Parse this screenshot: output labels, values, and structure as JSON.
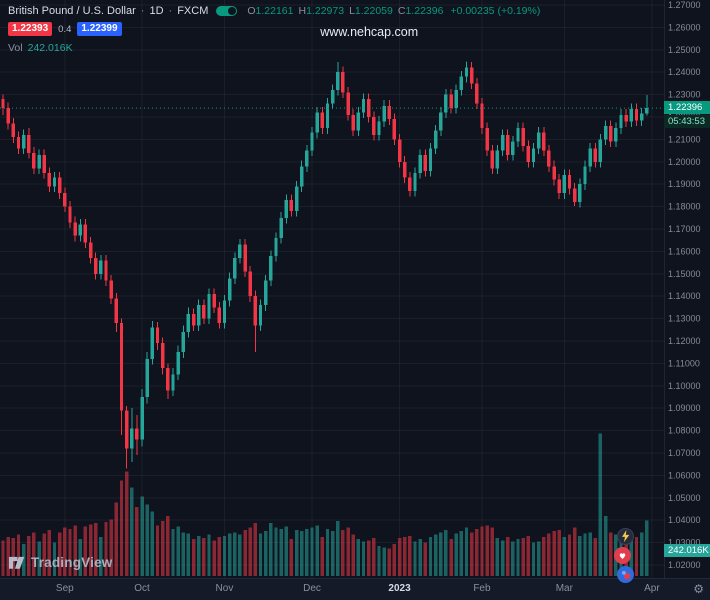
{
  "header": {
    "symbol_title": "British Pound / U.S. Dollar",
    "separator": "·",
    "interval": "1D",
    "exchange": "FXCM",
    "ohlc": {
      "o_label": "O",
      "o_value": "1.22161",
      "h_label": "H",
      "h_value": "1.22973",
      "l_label": "L",
      "l_value": "1.22059",
      "c_label": "C",
      "c_value": "1.22396",
      "change": "+0.00235 (+0.19%)"
    },
    "bid": "1.22393",
    "spread": "0.4",
    "ask": "1.22399",
    "vol_label": "Vol",
    "vol_value": "242.016K"
  },
  "watermark": "www.nehcap.com",
  "price_axis": {
    "last_price": "1.22396",
    "countdown": "05:43:53",
    "volume_badge": "242.016K"
  },
  "footer": {
    "logo_text": "TradingView"
  },
  "icons": {
    "gear": "⚙"
  },
  "colors": {
    "up": "#26a69a",
    "down": "#f23645",
    "up_text": "#089981",
    "grid": "rgba(255,255,255,0.05)",
    "axis_text": "#868b98",
    "accent_blue": "#2962ff",
    "accent_red": "#f23645"
  },
  "chart_data": {
    "type": "candlestick",
    "symbol": "GBP/USD",
    "timeframe": "1D",
    "exchange": "FXCM",
    "volume_unit": "K",
    "y_axis": {
      "min": 1.02,
      "max": 1.27,
      "tick_step": 0.01,
      "labels": [
        "1.27000",
        "1.26000",
        "1.25000",
        "1.24000",
        "1.23000",
        "1.22000",
        "1.21000",
        "1.20000",
        "1.19000",
        "1.18000",
        "1.17000",
        "1.16000",
        "1.15000",
        "1.14000",
        "1.13000",
        "1.12000",
        "1.11000",
        "1.10000",
        "1.09000",
        "1.08000",
        "1.07000",
        "1.06000",
        "1.05000",
        "1.04000",
        "1.03000",
        "1.02000"
      ]
    },
    "x_axis": {
      "labels": [
        {
          "text": "Sep",
          "index": 12
        },
        {
          "text": "Oct",
          "index": 27
        },
        {
          "text": "Nov",
          "index": 43
        },
        {
          "text": "Dec",
          "index": 60
        },
        {
          "text": "2023",
          "index": 77,
          "highlight": true
        },
        {
          "text": "Feb",
          "index": 93
        },
        {
          "text": "Mar",
          "index": 109
        },
        {
          "text": "Apr",
          "index": 126
        }
      ]
    },
    "last": {
      "open": 1.22161,
      "high": 1.22973,
      "low": 1.22059,
      "close": 1.22396,
      "change": "+0.00235 (+0.19%)",
      "volume": "242.016K",
      "countdown": "05:43:53"
    },
    "candles": [
      [
        1.228,
        1.23,
        1.221,
        1.224,
        155
      ],
      [
        1.224,
        1.2265,
        1.2145,
        1.217,
        170
      ],
      [
        1.217,
        1.2195,
        1.2085,
        1.211,
        165
      ],
      [
        1.211,
        1.2135,
        1.2035,
        1.206,
        180
      ],
      [
        1.206,
        1.2145,
        1.2035,
        1.212,
        140
      ],
      [
        1.212,
        1.215,
        1.2015,
        1.204,
        175
      ],
      [
        1.204,
        1.2065,
        1.1945,
        1.197,
        190
      ],
      [
        1.197,
        1.2055,
        1.1945,
        1.203,
        150
      ],
      [
        1.203,
        1.2055,
        1.1925,
        1.195,
        185
      ],
      [
        1.195,
        1.1975,
        1.1865,
        1.189,
        200
      ],
      [
        1.189,
        1.1955,
        1.1865,
        1.193,
        145
      ],
      [
        1.193,
        1.1955,
        1.1835,
        1.186,
        190
      ],
      [
        1.186,
        1.1885,
        1.1775,
        1.18,
        210
      ],
      [
        1.18,
        1.1825,
        1.1705,
        1.173,
        205
      ],
      [
        1.173,
        1.1755,
        1.1645,
        1.167,
        220
      ],
      [
        1.167,
        1.1745,
        1.1645,
        1.172,
        160
      ],
      [
        1.172,
        1.1745,
        1.1615,
        1.164,
        215
      ],
      [
        1.164,
        1.1665,
        1.1545,
        1.157,
        225
      ],
      [
        1.157,
        1.1595,
        1.1475,
        1.15,
        230
      ],
      [
        1.15,
        1.1585,
        1.1475,
        1.156,
        170
      ],
      [
        1.156,
        1.1585,
        1.1445,
        1.147,
        235
      ],
      [
        1.147,
        1.1495,
        1.1365,
        1.139,
        245
      ],
      [
        1.139,
        1.1415,
        1.124,
        1.128,
        320
      ],
      [
        1.128,
        1.13,
        1.078,
        1.089,
        415
      ],
      [
        1.089,
        1.091,
        1.063,
        1.072,
        455
      ],
      [
        1.072,
        1.09,
        1.066,
        1.081,
        385
      ],
      [
        1.081,
        1.087,
        1.069,
        1.076,
        300
      ],
      [
        1.076,
        1.0985,
        1.073,
        1.095,
        345
      ],
      [
        1.095,
        1.115,
        1.092,
        1.112,
        310
      ],
      [
        1.112,
        1.129,
        1.1095,
        1.126,
        280
      ],
      [
        1.126,
        1.1285,
        1.116,
        1.119,
        220
      ],
      [
        1.119,
        1.1215,
        1.105,
        1.108,
        240
      ],
      [
        1.108,
        1.11,
        1.094,
        1.098,
        260
      ],
      [
        1.098,
        1.108,
        1.0955,
        1.105,
        205
      ],
      [
        1.105,
        1.118,
        1.1025,
        1.115,
        215
      ],
      [
        1.115,
        1.127,
        1.1125,
        1.124,
        190
      ],
      [
        1.124,
        1.135,
        1.1215,
        1.132,
        185
      ],
      [
        1.132,
        1.1345,
        1.1245,
        1.127,
        160
      ],
      [
        1.127,
        1.1385,
        1.1245,
        1.136,
        175
      ],
      [
        1.136,
        1.1385,
        1.1275,
        1.13,
        165
      ],
      [
        1.13,
        1.1435,
        1.1275,
        1.141,
        180
      ],
      [
        1.141,
        1.1435,
        1.1325,
        1.135,
        155
      ],
      [
        1.135,
        1.1375,
        1.1255,
        1.128,
        170
      ],
      [
        1.128,
        1.1405,
        1.1255,
        1.138,
        175
      ],
      [
        1.138,
        1.1505,
        1.1355,
        1.148,
        185
      ],
      [
        1.148,
        1.1595,
        1.1455,
        1.157,
        190
      ],
      [
        1.157,
        1.1655,
        1.1545,
        1.163,
        180
      ],
      [
        1.163,
        1.1655,
        1.1485,
        1.151,
        200
      ],
      [
        1.151,
        1.1535,
        1.1375,
        1.14,
        210
      ],
      [
        1.14,
        1.1425,
        1.115,
        1.127,
        230
      ],
      [
        1.127,
        1.1385,
        1.1245,
        1.136,
        185
      ],
      [
        1.136,
        1.1495,
        1.1335,
        1.147,
        195
      ],
      [
        1.147,
        1.1605,
        1.1445,
        1.158,
        230
      ],
      [
        1.158,
        1.1685,
        1.1555,
        1.166,
        210
      ],
      [
        1.166,
        1.1775,
        1.1635,
        1.175,
        205
      ],
      [
        1.175,
        1.1855,
        1.1725,
        1.183,
        215
      ],
      [
        1.183,
        1.1855,
        1.1755,
        1.178,
        160
      ],
      [
        1.178,
        1.1915,
        1.1755,
        1.189,
        200
      ],
      [
        1.189,
        1.2005,
        1.1865,
        1.198,
        195
      ],
      [
        1.198,
        1.2075,
        1.1955,
        1.205,
        205
      ],
      [
        1.205,
        1.2155,
        1.2025,
        1.213,
        210
      ],
      [
        1.213,
        1.2245,
        1.2105,
        1.222,
        220
      ],
      [
        1.222,
        1.2245,
        1.2125,
        1.215,
        170
      ],
      [
        1.215,
        1.2285,
        1.2125,
        1.226,
        205
      ],
      [
        1.226,
        1.2345,
        1.2235,
        1.232,
        195
      ],
      [
        1.232,
        1.2445,
        1.2295,
        1.24,
        240
      ],
      [
        1.24,
        1.2425,
        1.2285,
        1.231,
        200
      ],
      [
        1.231,
        1.2335,
        1.2185,
        1.221,
        210
      ],
      [
        1.221,
        1.2235,
        1.2115,
        1.214,
        180
      ],
      [
        1.214,
        1.2245,
        1.2115,
        1.222,
        160
      ],
      [
        1.222,
        1.2305,
        1.2195,
        1.228,
        150
      ],
      [
        1.228,
        1.2305,
        1.2175,
        1.22,
        155
      ],
      [
        1.22,
        1.2225,
        1.2095,
        1.212,
        165
      ],
      [
        1.212,
        1.2205,
        1.2095,
        1.218,
        130
      ],
      [
        1.218,
        1.2275,
        1.2155,
        1.225,
        125
      ],
      [
        1.225,
        1.2275,
        1.2165,
        1.219,
        120
      ],
      [
        1.219,
        1.2215,
        1.2075,
        1.21,
        140
      ],
      [
        1.21,
        1.2125,
        1.1975,
        1.2,
        165
      ],
      [
        1.2,
        1.2025,
        1.1905,
        1.193,
        170
      ],
      [
        1.193,
        1.1955,
        1.1845,
        1.187,
        175
      ],
      [
        1.187,
        1.1975,
        1.1845,
        1.195,
        150
      ],
      [
        1.195,
        1.2055,
        1.1925,
        1.203,
        160
      ],
      [
        1.203,
        1.2055,
        1.1935,
        1.196,
        145
      ],
      [
        1.196,
        1.2085,
        1.1935,
        1.206,
        170
      ],
      [
        1.206,
        1.2165,
        1.2035,
        1.214,
        180
      ],
      [
        1.214,
        1.2245,
        1.2115,
        1.222,
        190
      ],
      [
        1.222,
        1.2325,
        1.2195,
        1.23,
        200
      ],
      [
        1.23,
        1.2325,
        1.2215,
        1.224,
        160
      ],
      [
        1.224,
        1.2345,
        1.2215,
        1.232,
        185
      ],
      [
        1.232,
        1.2405,
        1.2295,
        1.238,
        195
      ],
      [
        1.238,
        1.2448,
        1.2355,
        1.242,
        210
      ],
      [
        1.242,
        1.2445,
        1.2325,
        1.235,
        190
      ],
      [
        1.235,
        1.2375,
        1.2235,
        1.226,
        205
      ],
      [
        1.226,
        1.2285,
        1.2125,
        1.215,
        215
      ],
      [
        1.215,
        1.2175,
        1.2025,
        1.205,
        220
      ],
      [
        1.205,
        1.2075,
        1.1945,
        1.197,
        210
      ],
      [
        1.197,
        1.2075,
        1.1945,
        1.205,
        165
      ],
      [
        1.205,
        1.2145,
        1.2025,
        1.212,
        155
      ],
      [
        1.212,
        1.2145,
        1.2005,
        1.203,
        170
      ],
      [
        1.203,
        1.2115,
        1.2005,
        1.209,
        150
      ],
      [
        1.209,
        1.2175,
        1.2065,
        1.215,
        160
      ],
      [
        1.215,
        1.2175,
        1.2045,
        1.207,
        165
      ],
      [
        1.207,
        1.2095,
        1.1975,
        1.2,
        175
      ],
      [
        1.2,
        1.2085,
        1.1975,
        1.206,
        145
      ],
      [
        1.206,
        1.2155,
        1.2035,
        1.213,
        150
      ],
      [
        1.213,
        1.2155,
        1.2025,
        1.205,
        170
      ],
      [
        1.205,
        1.2075,
        1.1955,
        1.198,
        185
      ],
      [
        1.198,
        1.2005,
        1.1895,
        1.192,
        195
      ],
      [
        1.192,
        1.1945,
        1.1835,
        1.186,
        200
      ],
      [
        1.186,
        1.1965,
        1.1835,
        1.194,
        170
      ],
      [
        1.194,
        1.1965,
        1.1855,
        1.188,
        180
      ],
      [
        1.188,
        1.1905,
        1.1802,
        1.182,
        210
      ],
      [
        1.182,
        1.1925,
        1.1795,
        1.19,
        175
      ],
      [
        1.19,
        1.2005,
        1.1875,
        1.198,
        185
      ],
      [
        1.198,
        1.2085,
        1.1955,
        1.206,
        190
      ],
      [
        1.206,
        1.2085,
        1.1975,
        1.2,
        165
      ],
      [
        1.2,
        1.2125,
        1.1975,
        1.21,
        620
      ],
      [
        1.21,
        1.2185,
        1.2075,
        1.216,
        260
      ],
      [
        1.216,
        1.2185,
        1.2065,
        1.209,
        190
      ],
      [
        1.209,
        1.2175,
        1.2065,
        1.215,
        180
      ],
      [
        1.215,
        1.2235,
        1.2125,
        1.221,
        195
      ],
      [
        1.221,
        1.2235,
        1.2155,
        1.218,
        150
      ],
      [
        1.218,
        1.226,
        1.2155,
        1.2235,
        185
      ],
      [
        1.2235,
        1.226,
        1.216,
        1.2185,
        170
      ],
      [
        1.2185,
        1.224,
        1.216,
        1.22161,
        190
      ],
      [
        1.22161,
        1.22973,
        1.22059,
        1.22396,
        242.016
      ]
    ]
  }
}
